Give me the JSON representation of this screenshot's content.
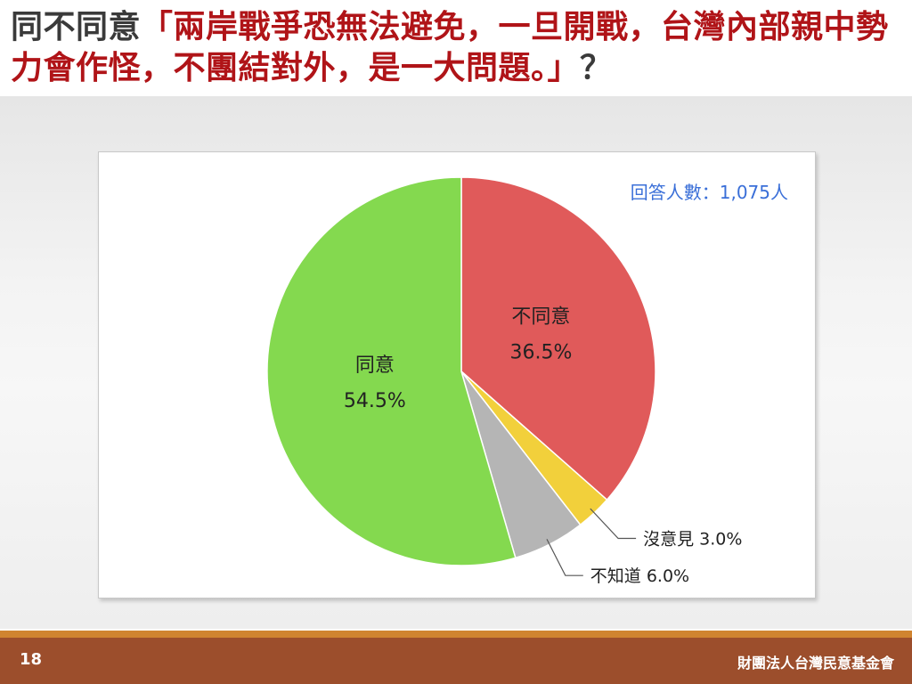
{
  "slide": {
    "question_prefix": "同不同意",
    "question_body": "「兩岸戰爭恐無法避免，一旦開戰，台灣內部親中勢力會作怪，不團結對外，是一大問題。」",
    "question_suffix": "？",
    "page_number": "18",
    "organization": "財團法人台灣民意基金會"
  },
  "chart_data": {
    "type": "pie",
    "title": "",
    "respondents_label": "回答人數：1,075人",
    "start": "12 o'clock",
    "direction": "clockwise",
    "slices": [
      {
        "label": "不同意",
        "value": 36.5,
        "value_label": "36.5%",
        "color": "#e05a5a"
      },
      {
        "label": "沒意見",
        "value": 3.0,
        "value_label": "3.0%",
        "color": "#f2d03b"
      },
      {
        "label": "不知道",
        "value": 6.0,
        "value_label": "6.0%",
        "color": "#b5b5b5"
      },
      {
        "label": "同意",
        "value": 54.5,
        "value_label": "54.5%",
        "color": "#84d94f"
      }
    ],
    "respondent_label_color": "#3a6fd8"
  }
}
